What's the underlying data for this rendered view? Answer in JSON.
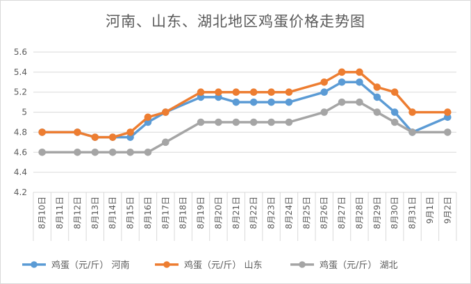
{
  "chart_data": {
    "type": "line",
    "title": "河南、山东、湖北地区鸡蛋价格走势图",
    "categories": [
      "8月10日",
      "8月11日",
      "8月12日",
      "8月13日",
      "8月14日",
      "8月15日",
      "8月16日",
      "8月17日",
      "8月18日",
      "8月19日",
      "8月20日",
      "8月21日",
      "8月22日",
      "8月23日",
      "8月24日",
      "8月25日",
      "8月26日",
      "8月27日",
      "8月28日",
      "8月29日",
      "8月30日",
      "8月31日",
      "9月1日",
      "9月2日"
    ],
    "yticks": [
      "4.2",
      "4.4",
      "4.6",
      "4.8",
      "5",
      "5.2",
      "5.4",
      "5.6"
    ],
    "ylim": [
      4.2,
      5.6
    ],
    "grid": "horizontal",
    "legend_position": "bottom",
    "series": [
      {
        "name": "鸡蛋（元/斤） 河南",
        "color": "#5B9BD5",
        "points": [
          {
            "x": "8月10日",
            "y": 4.8
          },
          {
            "x": "8月12日",
            "y": 4.8
          },
          {
            "x": "8月13日",
            "y": 4.75
          },
          {
            "x": "8月14日",
            "y": 4.75
          },
          {
            "x": "8月15日",
            "y": 4.75
          },
          {
            "x": "8月16日",
            "y": 4.9
          },
          {
            "x": "8月17日",
            "y": 5.0
          },
          {
            "x": "8月19日",
            "y": 5.15
          },
          {
            "x": "8月20日",
            "y": 5.15
          },
          {
            "x": "8月21日",
            "y": 5.1
          },
          {
            "x": "8月22日",
            "y": 5.1
          },
          {
            "x": "8月23日",
            "y": 5.1
          },
          {
            "x": "8月24日",
            "y": 5.1
          },
          {
            "x": "8月26日",
            "y": 5.2
          },
          {
            "x": "8月27日",
            "y": 5.3
          },
          {
            "x": "8月28日",
            "y": 5.3
          },
          {
            "x": "8月29日",
            "y": 5.15
          },
          {
            "x": "8月30日",
            "y": 5.0
          },
          {
            "x": "8月31日",
            "y": 4.8
          },
          {
            "x": "9月2日",
            "y": 4.95
          }
        ]
      },
      {
        "name": "鸡蛋（元/斤） 山东",
        "color": "#ED7D31",
        "points": [
          {
            "x": "8月10日",
            "y": 4.8
          },
          {
            "x": "8月12日",
            "y": 4.8
          },
          {
            "x": "8月13日",
            "y": 4.75
          },
          {
            "x": "8月14日",
            "y": 4.75
          },
          {
            "x": "8月15日",
            "y": 4.8
          },
          {
            "x": "8月16日",
            "y": 4.95
          },
          {
            "x": "8月17日",
            "y": 5.0
          },
          {
            "x": "8月19日",
            "y": 5.2
          },
          {
            "x": "8月20日",
            "y": 5.2
          },
          {
            "x": "8月21日",
            "y": 5.2
          },
          {
            "x": "8月22日",
            "y": 5.2
          },
          {
            "x": "8月23日",
            "y": 5.2
          },
          {
            "x": "8月24日",
            "y": 5.2
          },
          {
            "x": "8月26日",
            "y": 5.3
          },
          {
            "x": "8月27日",
            "y": 5.4
          },
          {
            "x": "8月28日",
            "y": 5.4
          },
          {
            "x": "8月29日",
            "y": 5.25
          },
          {
            "x": "8月30日",
            "y": 5.2
          },
          {
            "x": "8月31日",
            "y": 5.0
          },
          {
            "x": "9月2日",
            "y": 5.0
          }
        ]
      },
      {
        "name": "鸡蛋（元/斤） 湖北",
        "color": "#A5A5A5",
        "points": [
          {
            "x": "8月10日",
            "y": 4.6
          },
          {
            "x": "8月12日",
            "y": 4.6
          },
          {
            "x": "8月13日",
            "y": 4.6
          },
          {
            "x": "8月14日",
            "y": 4.6
          },
          {
            "x": "8月15日",
            "y": 4.6
          },
          {
            "x": "8月16日",
            "y": 4.6
          },
          {
            "x": "8月17日",
            "y": 4.7
          },
          {
            "x": "8月19日",
            "y": 4.9
          },
          {
            "x": "8月20日",
            "y": 4.9
          },
          {
            "x": "8月21日",
            "y": 4.9
          },
          {
            "x": "8月22日",
            "y": 4.9
          },
          {
            "x": "8月23日",
            "y": 4.9
          },
          {
            "x": "8月24日",
            "y": 4.9
          },
          {
            "x": "8月26日",
            "y": 5.0
          },
          {
            "x": "8月27日",
            "y": 5.1
          },
          {
            "x": "8月28日",
            "y": 5.1
          },
          {
            "x": "8月29日",
            "y": 5.0
          },
          {
            "x": "8月30日",
            "y": 4.9
          },
          {
            "x": "8月31日",
            "y": 4.8
          },
          {
            "x": "9月2日",
            "y": 4.8
          }
        ]
      }
    ]
  }
}
